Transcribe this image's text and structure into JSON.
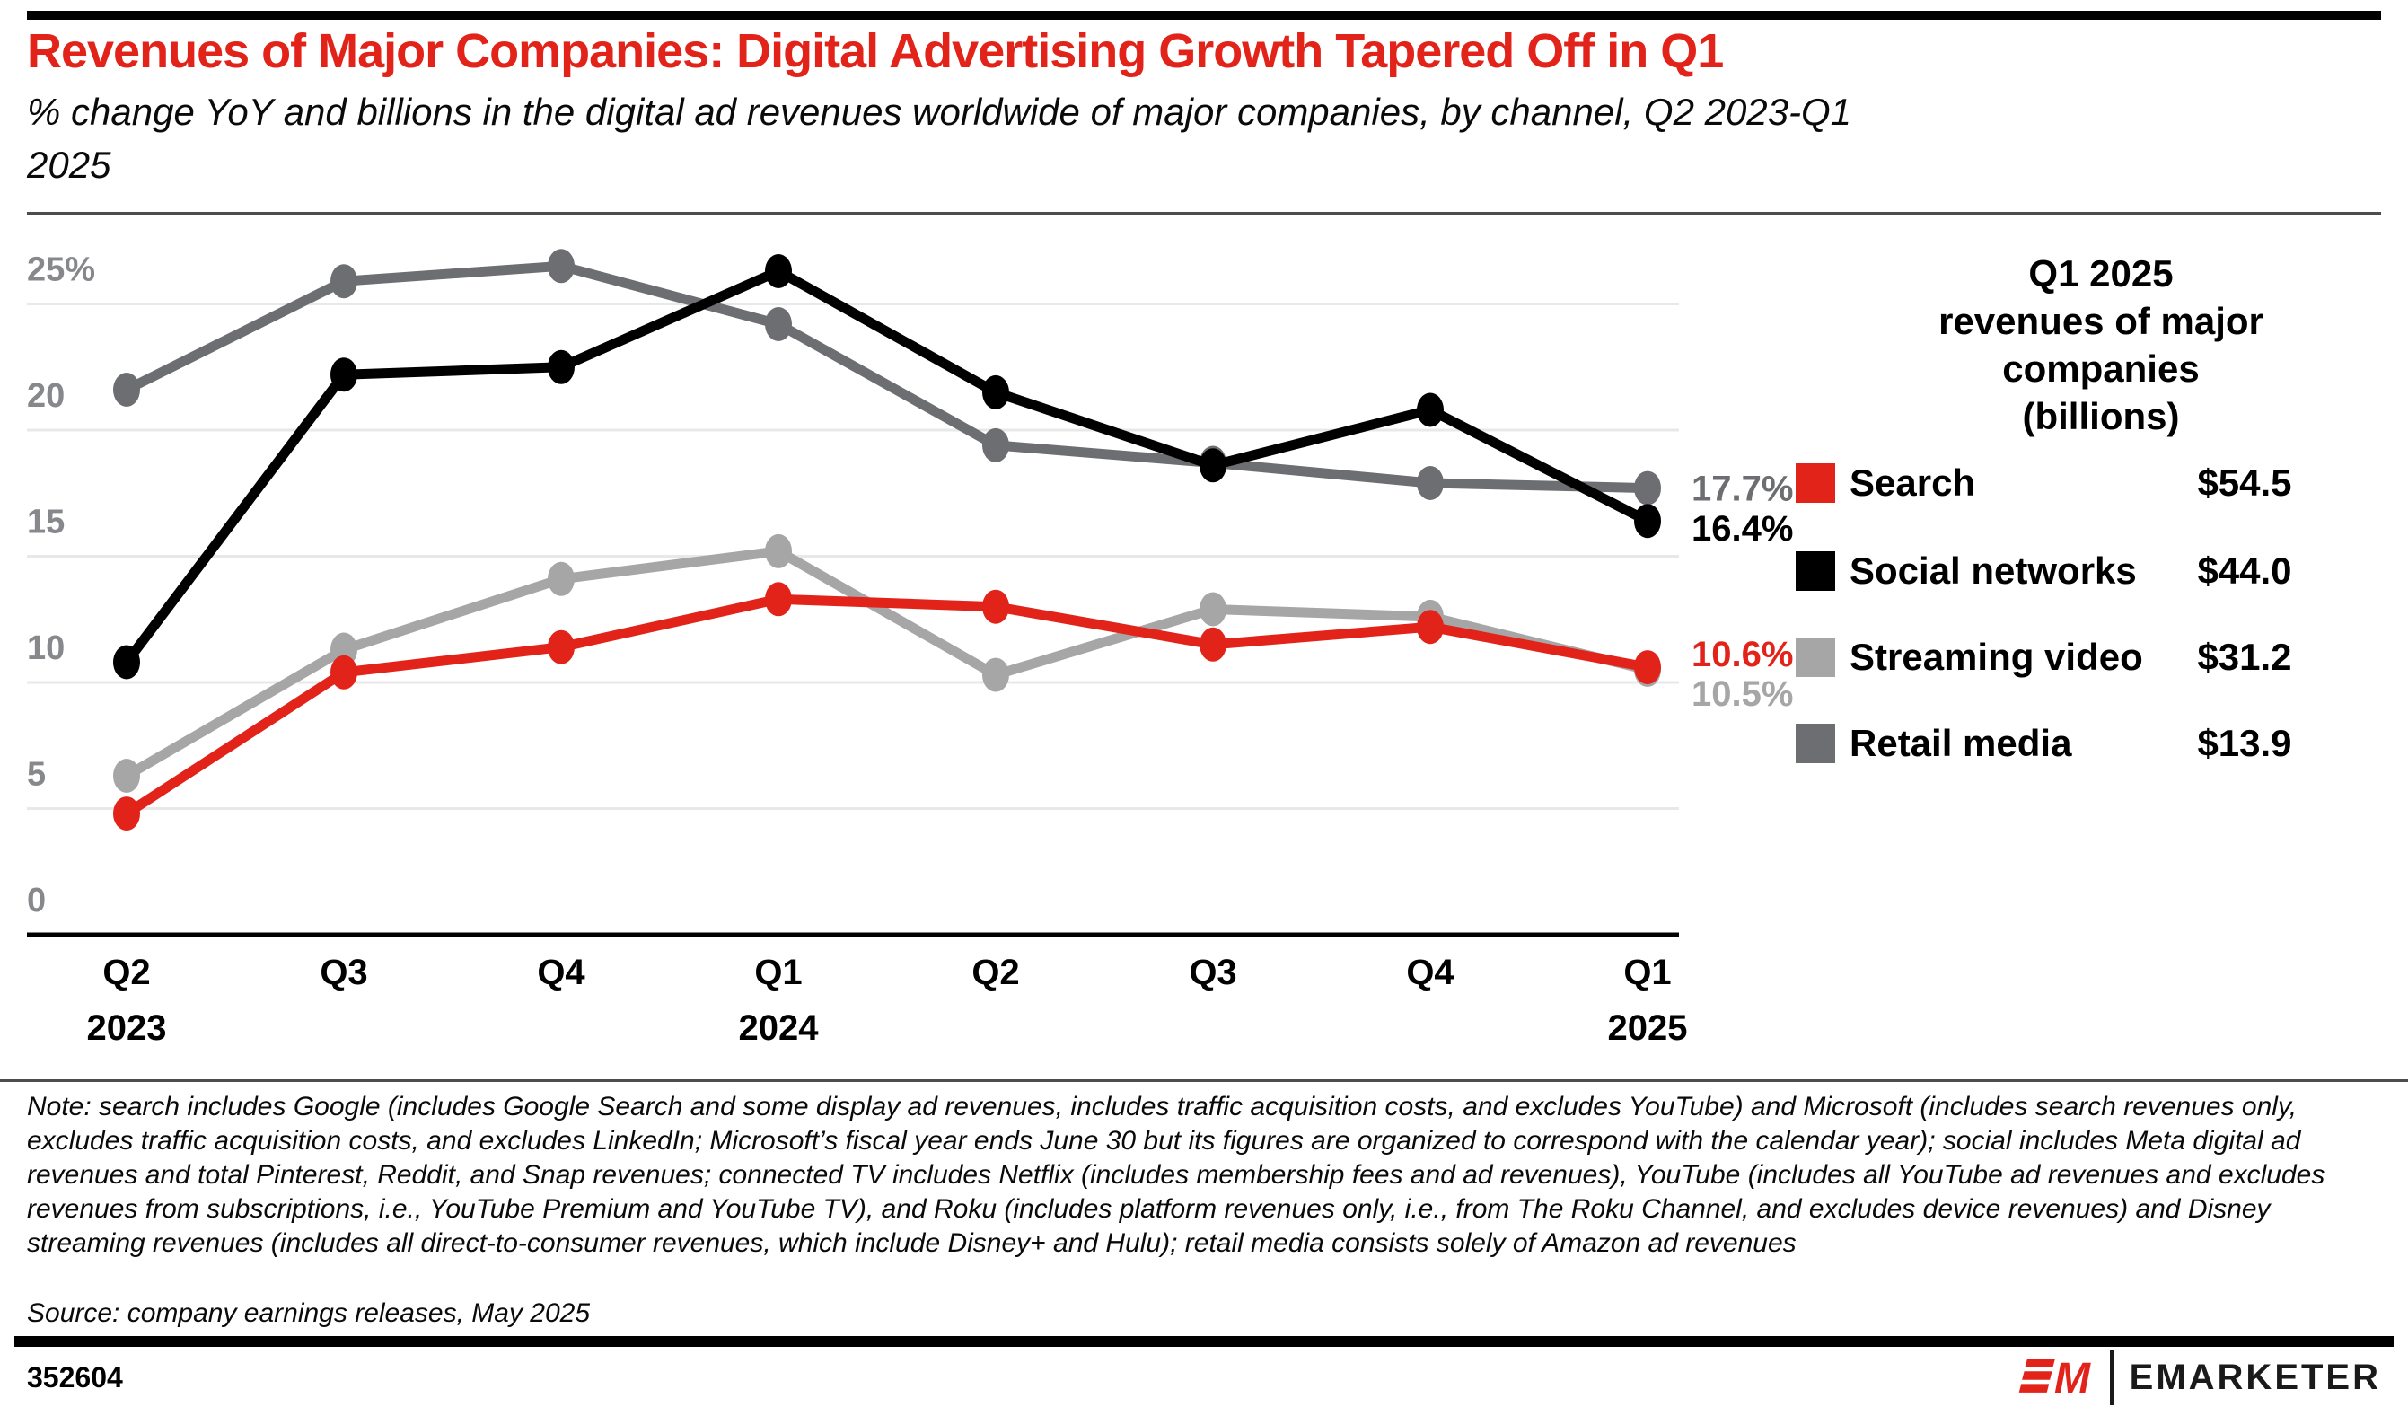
{
  "header": {
    "title": "Revenues of Major Companies: Digital Advertising Growth Tapered Off in Q1",
    "subtitle": "% change YoY and billions in the digital ad revenues worldwide of major companies, by channel, Q2 2023-Q1 2025"
  },
  "chart_data": {
    "type": "line",
    "title": "Revenues of Major Companies: Digital Advertising Growth Tapered Off in Q1",
    "xlabel": "",
    "ylabel": "% change YoY",
    "ylim": [
      0,
      27.5
    ],
    "grid": "horizontal",
    "y_ticks": [
      0,
      5,
      10,
      15,
      20,
      25
    ],
    "y_tick_labels": [
      "0",
      "5",
      "10",
      "15",
      "20",
      "25%"
    ],
    "x_labels": [
      {
        "quarter": "Q2",
        "year": "2023"
      },
      {
        "quarter": "Q3",
        "year": ""
      },
      {
        "quarter": "Q4",
        "year": ""
      },
      {
        "quarter": "Q1",
        "year": "2024"
      },
      {
        "quarter": "Q2",
        "year": ""
      },
      {
        "quarter": "Q3",
        "year": ""
      },
      {
        "quarter": "Q4",
        "year": ""
      },
      {
        "quarter": "Q1",
        "year": "2025"
      }
    ],
    "series": [
      {
        "name": "Retail media",
        "color": "#6d6e71",
        "values": [
          21.6,
          25.9,
          26.5,
          24.2,
          19.4,
          18.7,
          17.9,
          17.7
        ],
        "end_label": "17.7%"
      },
      {
        "name": "Streaming video",
        "color": "#a6a6a6",
        "values": [
          6.3,
          11.3,
          14.1,
          15.2,
          10.3,
          12.9,
          12.6,
          10.5
        ],
        "end_label": "10.5%"
      },
      {
        "name": "Social networks",
        "color": "#000000",
        "values": [
          10.8,
          22.2,
          22.5,
          26.3,
          21.5,
          18.6,
          20.8,
          16.4
        ],
        "end_label": "16.4%"
      },
      {
        "name": "Search",
        "color": "#e2231a",
        "values": [
          4.8,
          10.4,
          11.4,
          13.3,
          13.0,
          11.5,
          12.2,
          10.6
        ],
        "end_label": "10.6%"
      }
    ]
  },
  "legend": {
    "header_lines": [
      "Q1 2025",
      "revenues of major",
      "companies",
      "(billions)"
    ],
    "rows": [
      {
        "label": "Search",
        "value": "$54.5",
        "color": "#e2231a"
      },
      {
        "label": "Social networks",
        "value": "$44.0",
        "color": "#000000"
      },
      {
        "label": "Streaming video",
        "value": "$31.2",
        "color": "#a6a6a6"
      },
      {
        "label": "Retail media",
        "value": "$13.9",
        "color": "#6d6e71"
      }
    ]
  },
  "notes": {
    "note": "Note: search includes Google (includes Google Search and some display ad revenues, includes traffic acquisition costs, and excludes YouTube) and Microsoft (includes search revenues only, excludes traffic acquisition costs, and excludes LinkedIn; Microsoft’s fiscal year ends June 30 but its figures are organized to correspond with the calendar year); social includes Meta digital ad revenues and total Pinterest, Reddit, and Snap revenues; connected TV includes Netflix (includes membership fees and ad revenues), YouTube (includes all YouTube ad revenues and excludes revenues from subscriptions, i.e., YouTube Premium and YouTube TV), and Roku (includes platform revenues only, i.e., from The Roku Channel, and excludes device revenues) and Disney streaming revenues (includes all direct-to-consumer revenues, which include Disney+ and Hulu); retail media consists solely of Amazon ad revenues",
    "source": "Source: company earnings releases, May 2025"
  },
  "footer": {
    "chart_id": "352604",
    "brand": "EMARKETER",
    "brand_color": "#e2231a"
  }
}
